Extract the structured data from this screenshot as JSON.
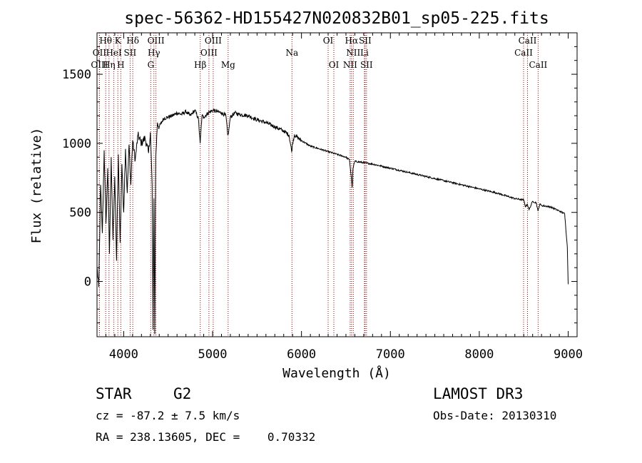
{
  "chart_data": {
    "type": "line",
    "title": "spec-56362-HD155427N020832B01_sp05-225.fits",
    "xlabel": "Wavelength (Å)",
    "ylabel": "Flux (relative)",
    "xlim": [
      3700,
      9100
    ],
    "ylim": [
      -400,
      1800
    ],
    "xticks": [
      4000,
      5000,
      6000,
      7000,
      8000,
      9000
    ],
    "yticks": [
      0,
      500,
      1000,
      1500
    ],
    "lines": [
      {
        "label": "Hθ",
        "x": 3798,
        "row": 0
      },
      {
        "label": "K",
        "x": 3934,
        "row": 0
      },
      {
        "label": "Hδ",
        "x": 4102,
        "row": 0
      },
      {
        "label": "OIII",
        "x": 4363,
        "row": 0
      },
      {
        "label": "OIII",
        "x": 5007,
        "row": 0
      },
      {
        "label": "OI",
        "x": 6300,
        "row": 0
      },
      {
        "label": "Hα",
        "x": 6563,
        "row": 0
      },
      {
        "label": "SII",
        "x": 6716,
        "row": 0
      },
      {
        "label": "CaII",
        "x": 8542,
        "row": 0
      },
      {
        "label": "OII",
        "x": 3727,
        "row": 1
      },
      {
        "label": "HeI",
        "x": 3889,
        "row": 1
      },
      {
        "label": "SII",
        "x": 4072,
        "row": 1
      },
      {
        "label": "Hγ",
        "x": 4340,
        "row": 1
      },
      {
        "label": "OIII",
        "x": 4959,
        "row": 1
      },
      {
        "label": "Na",
        "x": 5893,
        "row": 1
      },
      {
        "label": "NII",
        "x": 6583,
        "row": 1
      },
      {
        "label": "Li",
        "x": 6708,
        "row": 1
      },
      {
        "label": "CaII",
        "x": 8498,
        "row": 1
      },
      {
        "label": "OIII",
        "x": 3727,
        "row": 2
      },
      {
        "label": "Hη",
        "x": 3835,
        "row": 2
      },
      {
        "label": "H",
        "x": 3968,
        "row": 2
      },
      {
        "label": "G",
        "x": 4305,
        "row": 2
      },
      {
        "label": "Hβ",
        "x": 4861,
        "row": 2
      },
      {
        "label": "Mg",
        "x": 5175,
        "row": 2
      },
      {
        "label": "OI",
        "x": 6364,
        "row": 2
      },
      {
        "label": "NII",
        "x": 6548,
        "row": 2
      },
      {
        "label": "SII",
        "x": 6731,
        "row": 2
      },
      {
        "label": "CaII",
        "x": 8662,
        "row": 2
      }
    ],
    "spectrum": {
      "x": [
        3700,
        3720,
        3740,
        3760,
        3780,
        3800,
        3820,
        3840,
        3860,
        3880,
        3900,
        3920,
        3940,
        3960,
        3980,
        4000,
        4020,
        4040,
        4060,
        4080,
        4100,
        4130,
        4160,
        4200,
        4240,
        4280,
        4300,
        4320,
        4330,
        4340,
        4350,
        4360,
        4380,
        4400,
        4450,
        4500,
        4550,
        4600,
        4650,
        4700,
        4750,
        4800,
        4840,
        4860,
        4880,
        4900,
        4950,
        5000,
        5050,
        5100,
        5150,
        5170,
        5180,
        5200,
        5250,
        5300,
        5400,
        5500,
        5600,
        5700,
        5800,
        5860,
        5890,
        5900,
        5920,
        6000,
        6100,
        6200,
        6300,
        6400,
        6500,
        6540,
        6560,
        6570,
        6580,
        6600,
        6700,
        6800,
        7000,
        7200,
        7400,
        7600,
        7800,
        8000,
        8200,
        8400,
        8500,
        8520,
        8540,
        8560,
        8600,
        8640,
        8660,
        8680,
        8700,
        8800,
        8900,
        8960,
        8990,
        9000
      ],
      "y": [
        100,
        -40,
        700,
        350,
        950,
        420,
        820,
        200,
        900,
        300,
        760,
        150,
        920,
        280,
        850,
        500,
        960,
        640,
        990,
        700,
        1020,
        880,
        1060,
        1000,
        1040,
        930,
        1080,
        700,
        -350,
        600,
        -380,
        900,
        1150,
        1120,
        1180,
        1190,
        1200,
        1220,
        1210,
        1230,
        1200,
        1240,
        1180,
        1000,
        1200,
        1190,
        1220,
        1240,
        1230,
        1220,
        1200,
        1060,
        1080,
        1190,
        1220,
        1210,
        1200,
        1170,
        1150,
        1120,
        1090,
        1060,
        940,
        1000,
        1060,
        1020,
        980,
        960,
        940,
        920,
        900,
        880,
        760,
        680,
        820,
        870,
        860,
        850,
        820,
        790,
        760,
        730,
        700,
        670,
        640,
        600,
        590,
        540,
        560,
        520,
        580,
        570,
        510,
        560,
        550,
        540,
        510,
        490,
        250,
        -20
      ]
    }
  },
  "info": {
    "object_type": "STAR",
    "subclass": "G2",
    "survey": "LAMOST DR3",
    "cz": "cz = -87.2 ± 7.5 km/s",
    "obs_date": "Obs-Date: 20130310",
    "coords": "RA = 238.13605, DEC =    0.70332"
  }
}
